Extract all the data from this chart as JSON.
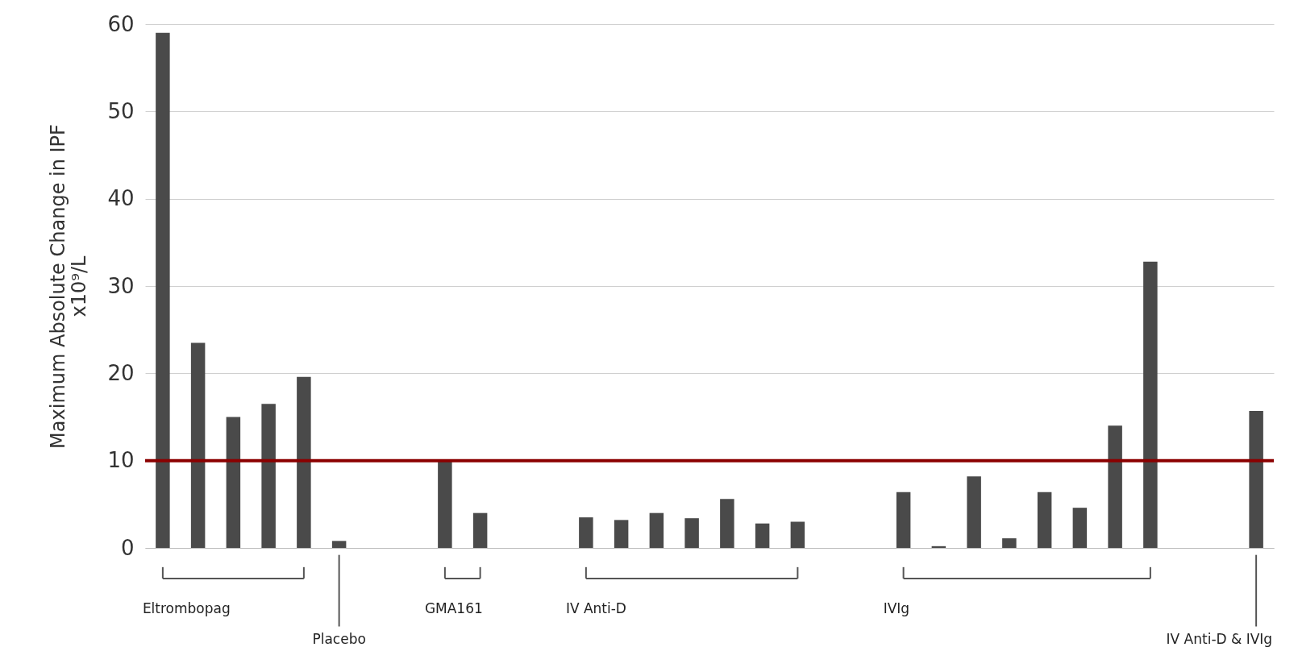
{
  "chart_data": {
    "type": "bar",
    "ylabel": "Maximum Absolute Change in IPF\nx10⁹/L",
    "categories": [
      null,
      null,
      null,
      null,
      null,
      null,
      null,
      null,
      null,
      null,
      null,
      null,
      null,
      null,
      null,
      null,
      null,
      null,
      null,
      null,
      null,
      null,
      null,
      null,
      null,
      null,
      null,
      null,
      null,
      null,
      null,
      null
    ],
    "values": [
      59,
      23.5,
      15,
      16.5,
      19.6,
      0.8,
      null,
      null,
      10,
      4,
      null,
      null,
      3.5,
      3.2,
      4,
      3.4,
      5.6,
      2.8,
      3,
      null,
      null,
      6.4,
      0.2,
      8.2,
      1.1,
      6.4,
      4.6,
      14,
      32.8,
      null,
      null,
      15.7
    ],
    "color": "#4a4a4a",
    "ylim": [
      0,
      60
    ],
    "yticks": [
      0,
      10,
      20,
      30,
      40,
      50,
      60
    ],
    "grid": "y",
    "tick_labels": "y",
    "ref_lines": [
      {
        "axis": "y",
        "value": 10,
        "color": "#8b0000"
      }
    ],
    "annotations": [
      "Eltrombopag",
      "Placebo",
      "GMA161",
      "IV Anti-D",
      "IVIg",
      "IV Anti-D & IVIg"
    ]
  }
}
